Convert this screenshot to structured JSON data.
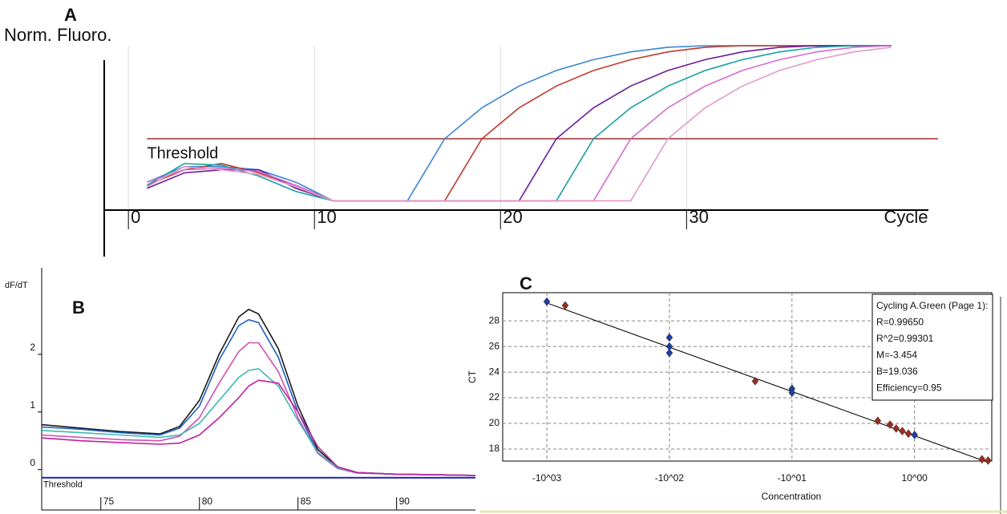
{
  "chart_data": [
    {
      "type": "line",
      "panel": "A",
      "y_label": "Norm. Fluoro.",
      "x_label": "Cycle",
      "x": [
        1,
        3,
        5,
        7,
        9,
        11,
        13,
        15,
        17,
        19,
        21,
        23,
        25,
        27,
        29,
        31,
        33,
        35,
        37,
        39,
        41
      ],
      "xlim": [
        -1.3,
        43
      ],
      "xticks": [
        0,
        10,
        20,
        30
      ],
      "ylim": [
        -0.06,
        1.0
      ],
      "grid": true,
      "threshold": {
        "value": 0.4,
        "label": "Threshold"
      },
      "series": [
        {
          "color": "#3a86d6",
          "values": [
            0.12,
            0.22,
            0.22,
            0.2,
            0.12,
            0,
            0,
            0,
            0.4,
            0.6,
            0.74,
            0.84,
            0.91,
            0.96,
            0.99,
            1,
            1,
            1,
            1,
            1,
            1
          ]
        },
        {
          "color": "#c0392b",
          "values": [
            0.1,
            0.2,
            0.24,
            0.18,
            0.1,
            0,
            0,
            0,
            0,
            0.4,
            0.6,
            0.74,
            0.84,
            0.91,
            0.96,
            0.99,
            1,
            1,
            1,
            1,
            1
          ]
        },
        {
          "color": "#6a1b9a",
          "values": [
            0.08,
            0.18,
            0.2,
            0.2,
            0.08,
            0,
            0,
            0,
            0,
            0,
            0,
            0.4,
            0.6,
            0.74,
            0.84,
            0.91,
            0.96,
            0.99,
            1,
            1,
            1
          ]
        },
        {
          "color": "#16a0a0",
          "values": [
            0.1,
            0.24,
            0.23,
            0.16,
            0.06,
            0,
            0,
            0,
            0,
            0,
            0,
            0,
            0.4,
            0.6,
            0.74,
            0.84,
            0.91,
            0.96,
            0.99,
            1,
            1
          ]
        },
        {
          "color": "#d36ccf",
          "values": [
            0.12,
            0.2,
            0.21,
            0.19,
            0.1,
            0,
            0,
            0,
            0,
            0,
            0,
            0,
            0,
            0.4,
            0.6,
            0.74,
            0.84,
            0.91,
            0.96,
            0.99,
            1
          ]
        },
        {
          "color": "#e39ac9",
          "values": [
            0.09,
            0.22,
            0.2,
            0.17,
            0.09,
            0,
            0,
            0,
            0,
            0,
            0,
            0,
            0,
            0,
            0.4,
            0.6,
            0.74,
            0.84,
            0.91,
            0.96,
            0.99
          ]
        }
      ]
    },
    {
      "type": "line",
      "panel": "B",
      "y_label": "dF/dT",
      "x": [
        72,
        74,
        76,
        78,
        79,
        80,
        81,
        82,
        82.5,
        83,
        84,
        85,
        86,
        87,
        88,
        90,
        92,
        94
      ],
      "xlim": [
        72,
        94
      ],
      "xticks": [
        75,
        80,
        85,
        90
      ],
      "ylim": [
        -0.7,
        3.5
      ],
      "yticks": [
        0,
        1,
        2
      ],
      "threshold": {
        "value": -0.14,
        "label": "Threshold"
      },
      "series": [
        {
          "color": "#1a1a1a",
          "values": [
            0.78,
            0.72,
            0.66,
            0.62,
            0.75,
            1.2,
            2.0,
            2.65,
            2.78,
            2.7,
            2.1,
            1.1,
            0.35,
            0.05,
            -0.05,
            -0.08,
            -0.09,
            -0.1
          ]
        },
        {
          "color": "#1f5fbf",
          "values": [
            0.74,
            0.7,
            0.64,
            0.6,
            0.72,
            1.1,
            1.9,
            2.5,
            2.6,
            2.55,
            1.95,
            1.0,
            0.3,
            0.04,
            -0.05,
            -0.08,
            -0.09,
            -0.1
          ]
        },
        {
          "color": "#d050b0",
          "values": [
            0.6,
            0.56,
            0.52,
            0.5,
            0.58,
            0.9,
            1.5,
            2.05,
            2.2,
            2.2,
            1.7,
            0.9,
            0.28,
            0.02,
            -0.06,
            -0.08,
            -0.09,
            -0.1
          ]
        },
        {
          "color": "#3fb8b0",
          "values": [
            0.68,
            0.64,
            0.6,
            0.56,
            0.6,
            0.8,
            1.2,
            1.6,
            1.72,
            1.75,
            1.45,
            0.85,
            0.3,
            0.03,
            -0.05,
            -0.08,
            -0.09,
            -0.1
          ]
        },
        {
          "color": "#c020a0",
          "values": [
            0.55,
            0.5,
            0.47,
            0.44,
            0.46,
            0.6,
            0.9,
            1.25,
            1.45,
            1.55,
            1.5,
            1.0,
            0.4,
            0.05,
            -0.05,
            -0.08,
            -0.09,
            -0.1
          ]
        }
      ]
    },
    {
      "type": "scatter",
      "panel": "C",
      "y_label": "CT",
      "x_label": "Concentration",
      "xlim": [
        -3.36,
        0.63
      ],
      "ylim": [
        17.06,
        30.2
      ],
      "grid": true,
      "xticks": [
        {
          "value": -3,
          "label": "-10^03"
        },
        {
          "value": -2,
          "label": "-10^02"
        },
        {
          "value": -1,
          "label": "-10^01"
        },
        {
          "value": 0,
          "label": "10^00"
        }
      ],
      "yticks": [
        18,
        20,
        22,
        24,
        26,
        28
      ],
      "stats_box": [
        "Cycling A.Green (Page 1):",
        "R=0.99650",
        "R^2=0.99301",
        "M=-3.454",
        "B=19.036",
        "Efficiency=0.95"
      ],
      "fit": {
        "x": [
          -3.0,
          0.6
        ],
        "values": [
          29.4,
          16.96
        ]
      },
      "series": [
        {
          "color": "#1f3fa0",
          "x": [
            -3,
            -2,
            -2,
            -2,
            -1,
            -1,
            0
          ],
          "values": [
            29.5,
            26.7,
            26.0,
            25.5,
            22.7,
            22.4,
            19.1
          ]
        },
        {
          "color": "#9a2d1f",
          "x": [
            -2.85,
            -1.3,
            -0.3,
            -0.2,
            -0.15,
            -0.1,
            -0.05,
            0.55,
            0.6
          ],
          "values": [
            29.2,
            23.3,
            20.2,
            19.9,
            19.6,
            19.4,
            19.2,
            17.2,
            17.1
          ]
        }
      ]
    }
  ]
}
